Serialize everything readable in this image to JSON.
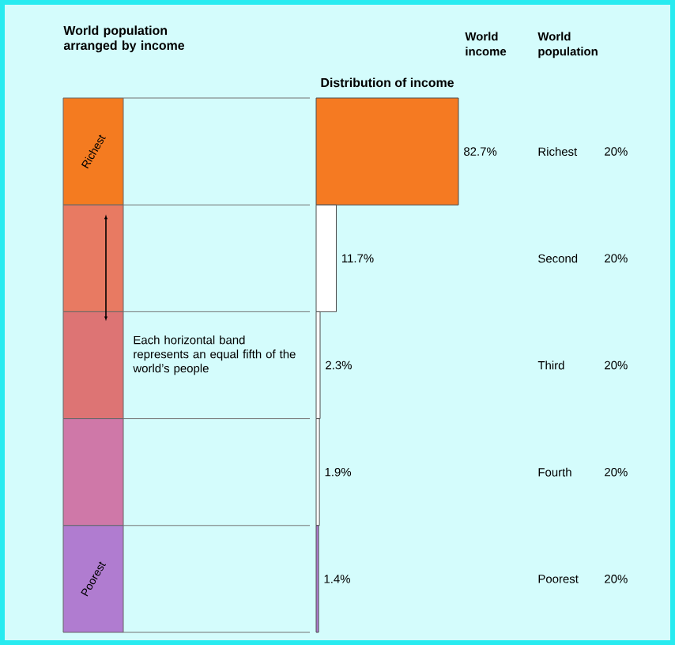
{
  "chart_data": {
    "type": "bar",
    "orientation": "horizontal",
    "title": "Distribution of income",
    "categories": [
      "Richest",
      null,
      null,
      null,
      "Poorest"
    ],
    "values": [
      82.7,
      11.7,
      2.3,
      1.9,
      1.4
    ],
    "colors": [
      "#f57a22",
      "#ffffff",
      "#ffffff",
      "#ffffff",
      "#b07bd0"
    ],
    "value_labels": [
      "82.7%",
      "11.7%",
      "2.3%",
      "1.9%",
      "1.4%"
    ],
    "annotations": [
      "Each horizontal band represents an equal fifth of the world’s people",
      "World population arranged by income",
      "World population",
      "World income",
      "Richest",
      "Second",
      "Third",
      "Fourth",
      "Poorest",
      "20%",
      "20%",
      "20%",
      "20%",
      "20%"
    ]
  }
}
